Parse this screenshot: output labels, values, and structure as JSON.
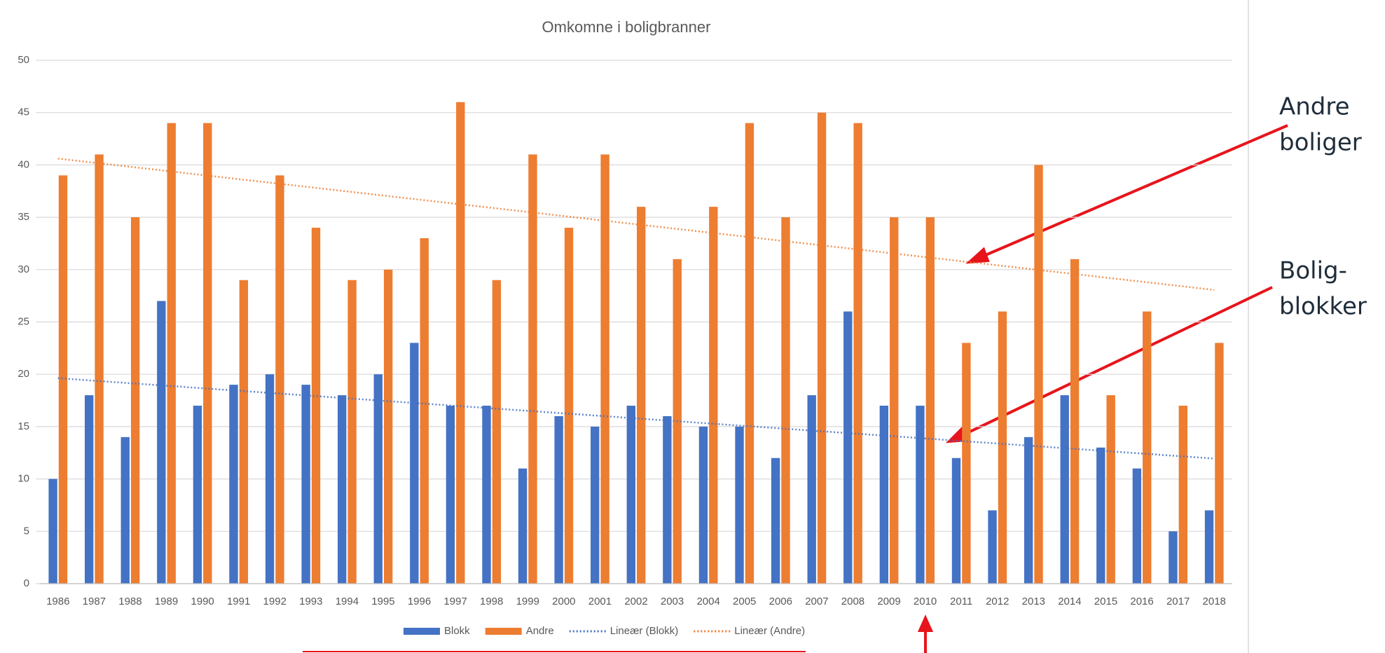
{
  "chart_data": {
    "type": "bar",
    "title": "Omkomne i boligbranner",
    "categories": [
      "1986",
      "1987",
      "1988",
      "1989",
      "1990",
      "1991",
      "1992",
      "1993",
      "1994",
      "1995",
      "1996",
      "1997",
      "1998",
      "1999",
      "2000",
      "2001",
      "2002",
      "2003",
      "2004",
      "2005",
      "2006",
      "2007",
      "2008",
      "2009",
      "2010",
      "2011",
      "2012",
      "2013",
      "2014",
      "2015",
      "2016",
      "2017",
      "2018"
    ],
    "series": [
      {
        "name": "Blokk",
        "color": "#4472c4",
        "values": [
          10,
          18,
          14,
          27,
          17,
          19,
          20,
          19,
          18,
          20,
          23,
          17,
          17,
          11,
          16,
          15,
          17,
          16,
          15,
          15,
          12,
          18,
          26,
          17,
          17,
          12,
          7,
          14,
          18,
          13,
          11,
          5,
          7
        ]
      },
      {
        "name": "Andre",
        "color": "#ed7d31",
        "values": [
          39,
          41,
          35,
          44,
          44,
          29,
          39,
          34,
          29,
          30,
          33,
          46,
          29,
          41,
          34,
          41,
          36,
          31,
          36,
          44,
          35,
          45,
          44,
          35,
          35,
          23,
          26,
          40,
          31,
          18,
          26,
          17,
          23
        ]
      }
    ],
    "trendlines": [
      {
        "name": "Lineær (Blokk)",
        "color": "#4472c4"
      },
      {
        "name": "Lineær (Andre)",
        "color": "#ed7d31"
      }
    ],
    "ylim": [
      0,
      50
    ],
    "yticks": [
      0,
      5,
      10,
      15,
      20,
      25,
      30,
      35,
      40,
      45,
      50
    ],
    "grid": true,
    "legend": "bottom",
    "annotations": [
      {
        "lines": [
          "Andre",
          "boliger"
        ]
      },
      {
        "lines": [
          "Bolig-",
          "blokker"
        ]
      }
    ]
  }
}
